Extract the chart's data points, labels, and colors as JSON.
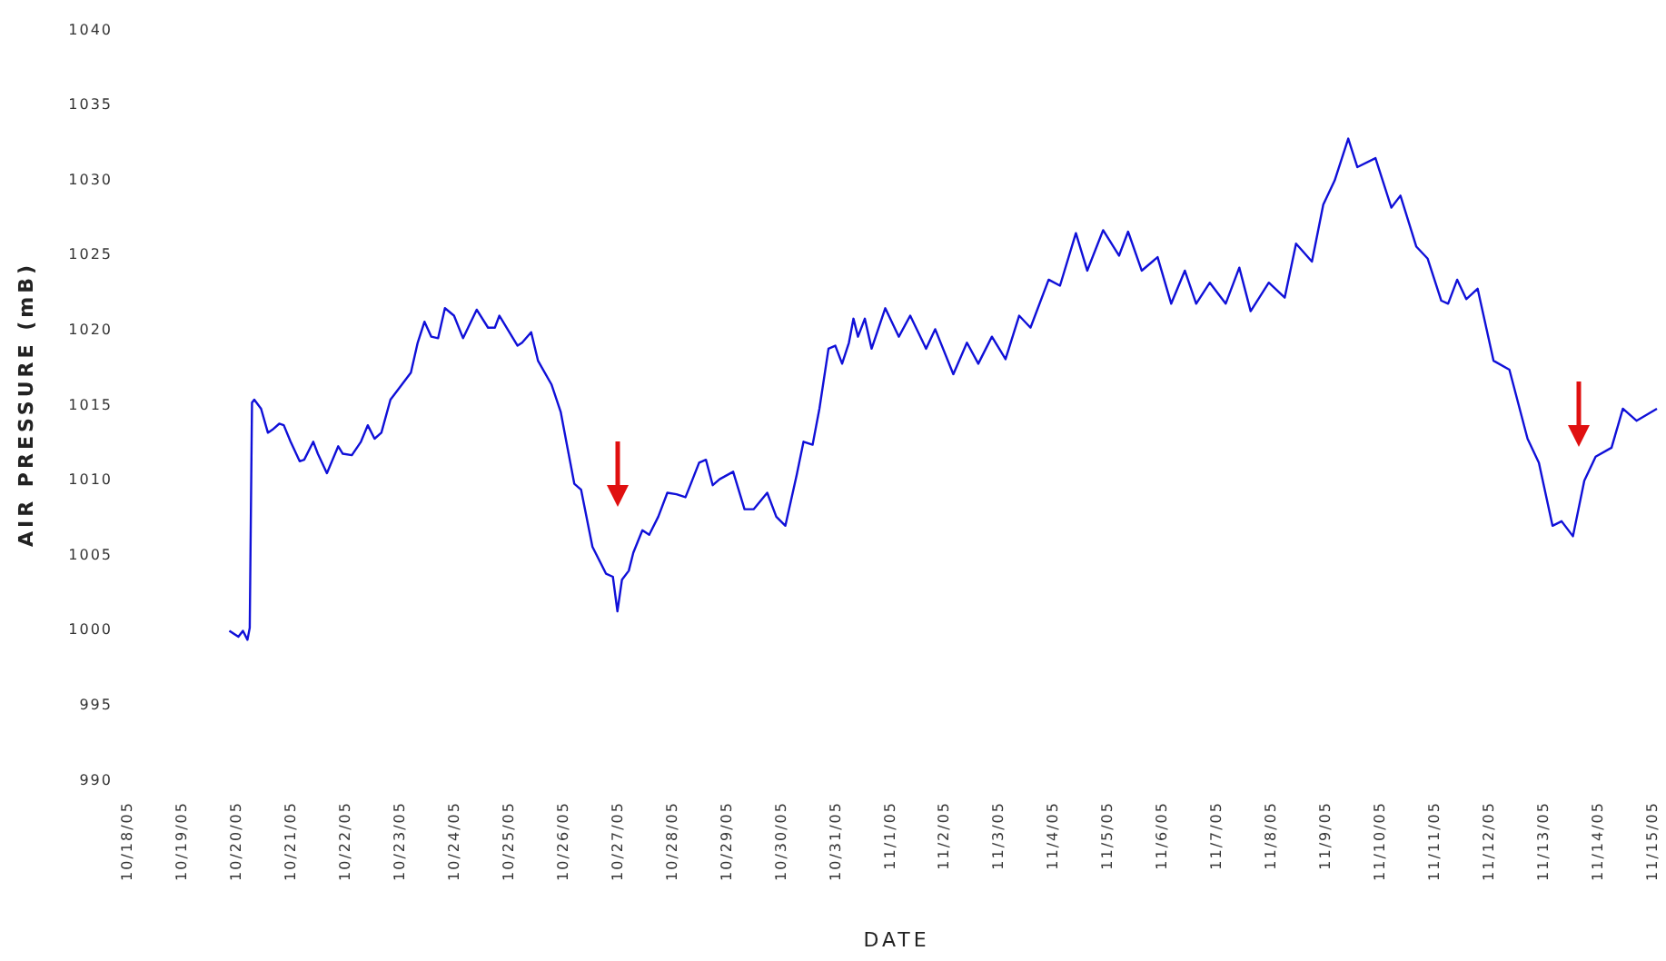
{
  "chart_data": {
    "type": "line",
    "xlabel": "DATE",
    "ylabel": "AIR PRESSURE (mB)",
    "xlim": [
      "--10-18",
      "--11-15T06:00"
    ],
    "xticks": [
      {
        "value": "--10-18",
        "label": "10/18/05"
      },
      {
        "value": "--10-19",
        "label": "10/19/05"
      },
      {
        "value": "--10-20",
        "label": "10/20/05"
      },
      {
        "value": "--10-21",
        "label": "10/21/05"
      },
      {
        "value": "--10-22",
        "label": "10/22/05"
      },
      {
        "value": "--10-23",
        "label": "10/23/05"
      },
      {
        "value": "--10-24",
        "label": "10/24/05"
      },
      {
        "value": "--10-25",
        "label": "10/25/05"
      },
      {
        "value": "--10-26",
        "label": "10/26/05"
      },
      {
        "value": "--10-27",
        "label": "10/27/05"
      },
      {
        "value": "--10-28",
        "label": "10/28/05"
      },
      {
        "value": "--10-29",
        "label": "10/29/05"
      },
      {
        "value": "--10-30",
        "label": "10/30/05"
      },
      {
        "value": "--10-31",
        "label": "10/31/05"
      },
      {
        "value": "--11-01",
        "label": "11/1/05"
      },
      {
        "value": "--11-02",
        "label": "11/2/05"
      },
      {
        "value": "--11-03",
        "label": "11/3/05"
      },
      {
        "value": "--11-04",
        "label": "11/4/05"
      },
      {
        "value": "--11-05",
        "label": "11/5/05"
      },
      {
        "value": "--11-06",
        "label": "11/6/05"
      },
      {
        "value": "--11-07",
        "label": "11/7/05"
      },
      {
        "value": "--11-08",
        "label": "11/8/05"
      },
      {
        "value": "--11-09",
        "label": "11/9/05"
      },
      {
        "value": "--11-10",
        "label": "11/10/05"
      },
      {
        "value": "--11-11",
        "label": "11/11/05"
      },
      {
        "value": "--11-12",
        "label": "11/12/05"
      },
      {
        "value": "--11-13",
        "label": "11/13/05"
      },
      {
        "value": "--11-14",
        "label": "11/14/05"
      },
      {
        "value": "--11-15",
        "label": "11/15/05"
      }
    ],
    "ylim": [
      990,
      1040
    ],
    "yticks": [
      990,
      995,
      1000,
      1005,
      1010,
      1015,
      1020,
      1025,
      1030,
      1035,
      1040
    ],
    "grid": false,
    "legend": false,
    "marker": "none",
    "line_style": "solid",
    "series": [
      {
        "color": "#1010d8",
        "x": [
          "--10-19T21:00",
          "--10-20T01:00",
          "--10-20T03:00",
          "--10-20T05:00",
          "--10-20T06:00",
          "--10-20T07:00",
          "--10-20T08:00",
          "--10-20T11:00",
          "--10-20T14:00",
          "--10-20T16:00",
          "--10-20T19:00",
          "--10-20T21:00",
          "--10-21T00:00",
          "--10-21T04:00",
          "--10-21T06:00",
          "--10-21T10:00",
          "--10-21T12:00",
          "--10-21T16:00",
          "--10-21T21:00",
          "--10-21T23:00",
          "--10-22T03:00",
          "--10-22T07:00",
          "--10-22T10:00",
          "--10-22T13:00",
          "--10-22T16:00",
          "--10-22T20:00",
          "--10-23T01:00",
          "--10-23T05:00",
          "--10-23T08:00",
          "--10-23T11:00",
          "--10-23T14:00",
          "--10-23T17:00",
          "--10-23T20:00",
          "--10-24T00:00",
          "--10-24T04:00",
          "--10-24T10:00",
          "--10-24T15:00",
          "--10-24T18:00",
          "--10-24T20:00",
          "--10-25T00:00",
          "--10-25T04:00",
          "--10-25T06:00",
          "--10-25T10:00",
          "--10-25T13:00",
          "--10-25T19:00",
          "--10-25T23:00",
          "--10-26T02:00",
          "--10-26T05:00",
          "--10-26T08:00",
          "--10-26T13:00",
          "--10-26T17:00",
          "--10-26T19:00",
          "--10-26T22:00",
          "--10-27T00:00",
          "--10-27T02:00",
          "--10-27T05:00",
          "--10-27T07:00",
          "--10-27T11:00",
          "--10-27T14:00",
          "--10-27T18:00",
          "--10-27T22:00",
          "--10-28T02:00",
          "--10-28T06:00",
          "--10-28T12:00",
          "--10-28T15:00",
          "--10-28T18:00",
          "--10-28T21:00",
          "--10-29T03:00",
          "--10-29T08:00",
          "--10-29T12:00",
          "--10-29T18:00",
          "--10-29T22:00",
          "--10-30T02:00",
          "--10-30T07:00",
          "--10-30T10:00",
          "--10-30T14:00",
          "--10-30T17:00",
          "--10-30T21:00",
          "--10-31T00:00",
          "--10-31T03:00",
          "--10-31T06:00",
          "--10-31T08:00",
          "--10-31T10:00",
          "--10-31T13:00",
          "--10-31T16:00",
          "--10-31T22:00",
          "--11-01T04:00",
          "--11-01T09:00",
          "--11-01T16:00",
          "--11-01T20:00",
          "--11-02T04:00",
          "--11-02T10:00",
          "--11-02T15:00",
          "--11-02T21:00",
          "--11-03T03:00",
          "--11-03T09:00",
          "--11-03T14:00",
          "--11-03T22:00",
          "--11-04T03:00",
          "--11-04T10:00",
          "--11-04T15:00",
          "--11-04T22:00",
          "--11-05T05:00",
          "--11-05T09:00",
          "--11-05T15:00",
          "--11-05T22:00",
          "--11-06T04:00",
          "--11-06T10:00",
          "--11-06T15:00",
          "--11-06T21:00",
          "--11-07T04:00",
          "--11-07T10:00",
          "--11-07T15:00",
          "--11-07T23:00",
          "--11-08T06:00",
          "--11-08T11:00",
          "--11-08T18:00",
          "--11-08T23:00",
          "--11-09T04:00",
          "--11-09T10:00",
          "--11-09T14:00",
          "--11-09T22:00",
          "--11-10T05:00",
          "--11-10T09:00",
          "--11-10T16:00",
          "--11-10T21:00",
          "--11-11T03:00",
          "--11-11T06:00",
          "--11-11T10:00",
          "--11-11T14:00",
          "--11-11T19:00",
          "--11-12T02:00",
          "--11-12T09:00",
          "--11-12T17:00",
          "--11-12T22:00",
          "--11-13T04:00",
          "--11-13T08:00",
          "--11-13T13:00",
          "--11-13T18:00",
          "--11-13T23:00",
          "--11-14T06:00",
          "--11-14T11:00",
          "--11-14T17:00",
          "--11-15T02:00"
        ],
        "values": [
          999.9,
          999.5,
          999.9,
          999.3,
          1000.1,
          1015.1,
          1015.3,
          1014.7,
          1013.1,
          1013.3,
          1013.7,
          1013.6,
          1012.5,
          1011.2,
          1011.3,
          1012.5,
          1011.7,
          1010.4,
          1012.2,
          1011.7,
          1011.6,
          1012.5,
          1013.6,
          1012.7,
          1013.1,
          1015.3,
          1016.3,
          1017.1,
          1019.1,
          1020.5,
          1019.5,
          1019.4,
          1021.4,
          1020.9,
          1019.4,
          1021.3,
          1020.1,
          1020.1,
          1020.9,
          1019.9,
          1018.9,
          1019.1,
          1019.8,
          1017.9,
          1016.3,
          1014.5,
          1012.1,
          1009.7,
          1009.3,
          1005.5,
          1004.3,
          1003.7,
          1003.5,
          1001.2,
          1003.3,
          1003.9,
          1005.1,
          1006.6,
          1006.3,
          1007.5,
          1009.1,
          1009.0,
          1008.8,
          1011.1,
          1011.3,
          1009.6,
          1010.0,
          1010.5,
          1008.0,
          1008.0,
          1009.1,
          1007.5,
          1006.9,
          1010.3,
          1012.5,
          1012.3,
          1014.7,
          1018.7,
          1018.9,
          1017.7,
          1019.1,
          1020.7,
          1019.5,
          1020.7,
          1018.7,
          1021.4,
          1019.5,
          1020.9,
          1018.7,
          1020.0,
          1017.0,
          1019.1,
          1017.7,
          1019.5,
          1018.0,
          1020.9,
          1020.1,
          1023.3,
          1022.9,
          1026.4,
          1023.9,
          1026.6,
          1024.9,
          1026.5,
          1023.9,
          1024.8,
          1021.7,
          1023.9,
          1021.7,
          1023.1,
          1021.7,
          1024.1,
          1021.2,
          1023.1,
          1022.1,
          1025.7,
          1024.5,
          1028.3,
          1029.9,
          1032.7,
          1030.8,
          1031.4,
          1028.1,
          1028.9,
          1025.5,
          1024.7,
          1021.9,
          1021.7,
          1023.3,
          1022.0,
          1022.7,
          1017.9,
          1017.3,
          1012.7,
          1011.1,
          1006.9,
          1007.2,
          1006.2,
          1009.9,
          1011.5,
          1012.1,
          1014.7,
          1013.9,
          1014.7
        ]
      }
    ]
  }
}
